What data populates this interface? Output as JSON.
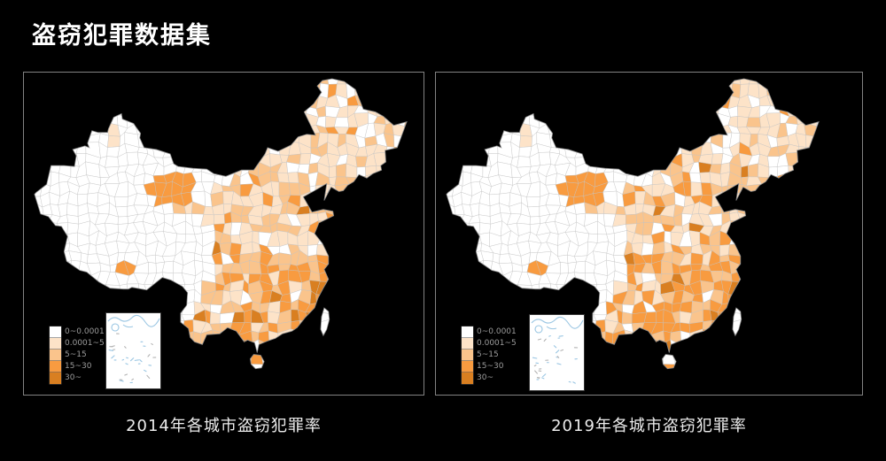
{
  "title": "盗窃犯罪数据集",
  "panels": [
    {
      "year": "2014",
      "caption": "2014年各城市盗窃犯罪率"
    },
    {
      "year": "2019",
      "caption": "2019年各城市盗窃犯罪率"
    }
  ],
  "legend": {
    "bins": [
      {
        "label": "0~0.0001",
        "color": "#ffffff"
      },
      {
        "label": "0.0001~5",
        "color": "#fde3c8"
      },
      {
        "label": "5~15",
        "color": "#fac48c"
      },
      {
        "label": "15~30",
        "color": "#f89b40"
      },
      {
        "label": "30~",
        "color": "#d97f21"
      }
    ],
    "label_color": "#9b9b9b"
  },
  "map_style": {
    "background": "#000000",
    "land_color": "#ffffff",
    "cell_border_color": "#c3c3c3",
    "outline_color": "#8a8a8a",
    "water_color": "#9ac6e3",
    "inset_dash_color": "#b3b3b3",
    "inset_border_color": "#333333",
    "panel_border_color": "#828282",
    "caption_color": "#ececec",
    "title_color": "#ffffff"
  },
  "chart_data": {
    "type": "heatmap",
    "subtype": "choropleth",
    "geography": "China, city (prefecture) level, with South China Sea inset per panel",
    "title": "盗窃犯罪数据集",
    "panels": [
      {
        "caption": "2014年各城市盗窃犯罪率"
      },
      {
        "caption": "2019年各城市盗窃犯罪率"
      }
    ],
    "legend_bins": [
      "0~0.0001",
      "0.0001~5",
      "5~15",
      "15~30",
      "30~"
    ],
    "bin_colors": [
      "#ffffff",
      "#fde3c8",
      "#fac48c",
      "#f89b40",
      "#d97f21"
    ],
    "legend_position": "bottom-left of each panel",
    "notes": "Darker orange = higher theft crime rate. Western China (Xinjiang, Tibet, Qinghai) mostly in lowest bin (white); eastern and southern cities shaded orange; southeast coastal cities darkest in 2014; individual city values are not labeled in the figure."
  }
}
